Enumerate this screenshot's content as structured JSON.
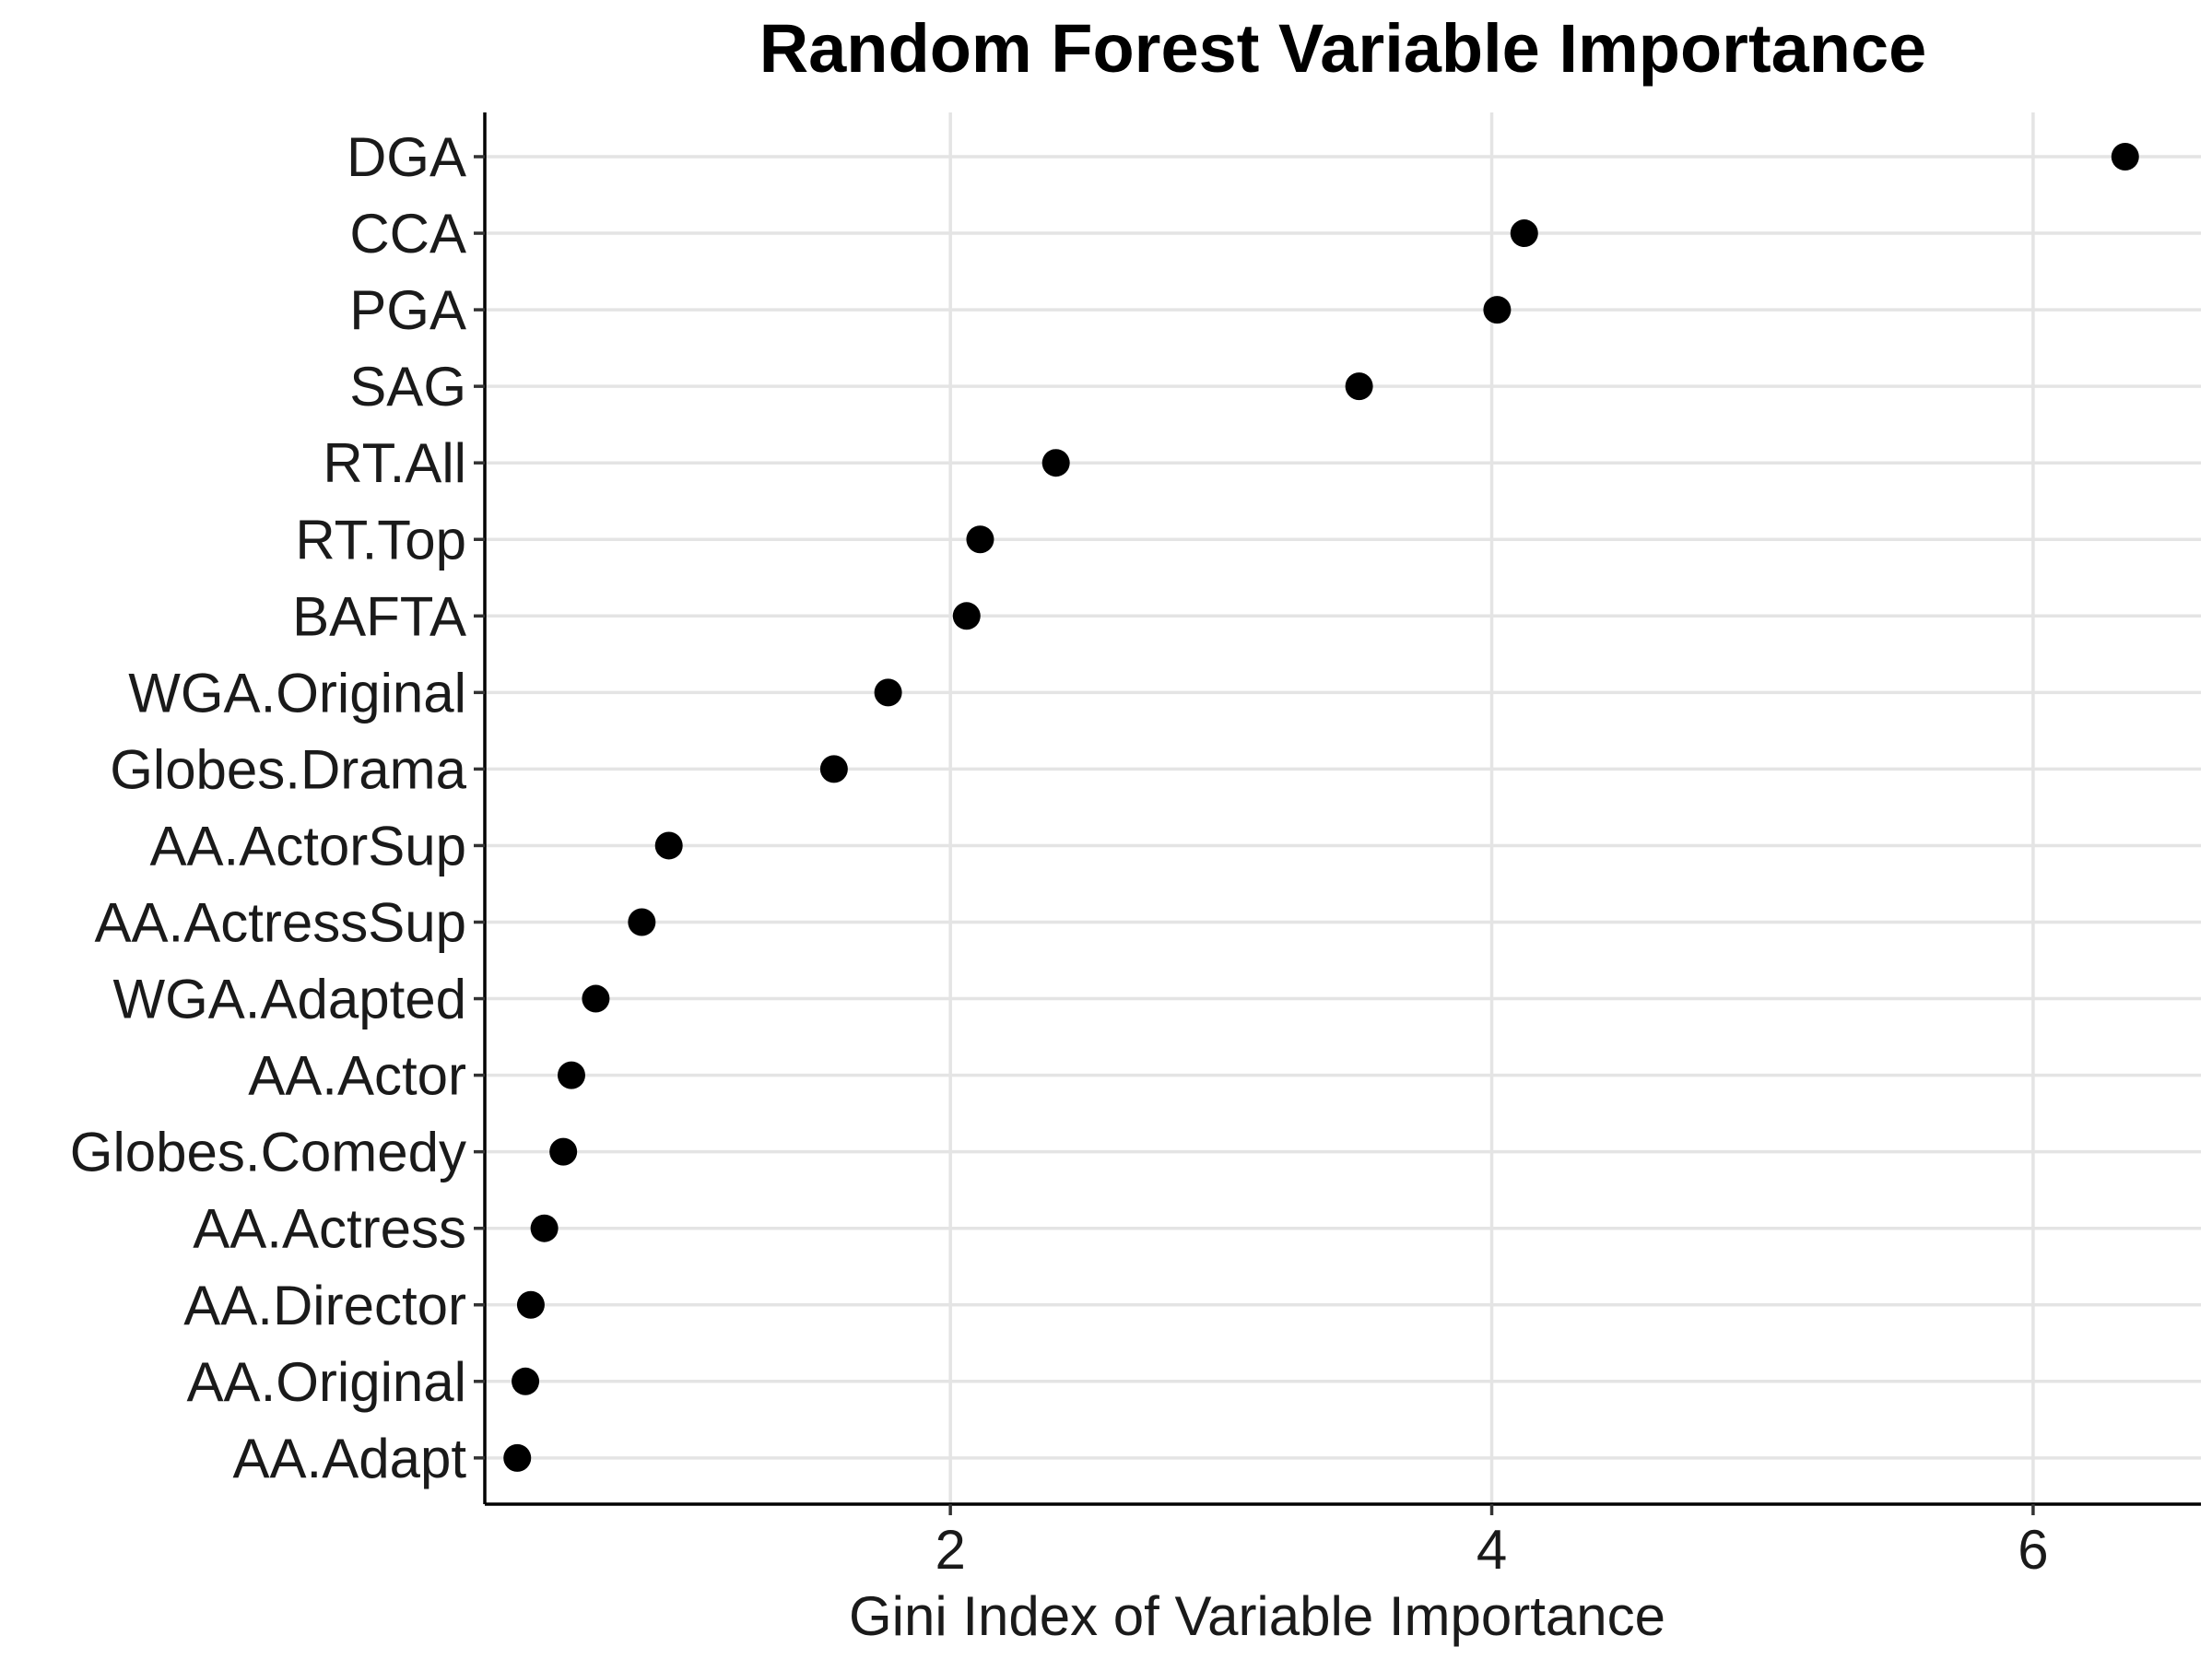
{
  "chart_data": {
    "type": "scatter",
    "title": "Random Forest Variable Importance",
    "xlabel": "Gini Index of Variable Importance",
    "ylabel": "",
    "xlim": [
      0.28,
      6.62
    ],
    "xticks": [
      2,
      4,
      6
    ],
    "grid": true,
    "legend": "none",
    "point_color": "#000000",
    "grid_color": "#e4e4e4",
    "categories": [
      "DGA",
      "CCA",
      "PGA",
      "SAG",
      "RT.All",
      "RT.Top",
      "BAFTA",
      "WGA.Original",
      "Globes.Drama",
      "AA.ActorSup",
      "AA.ActressSup",
      "WGA.Adapted",
      "AA.Actor",
      "Globes.Comedy",
      "AA.Actress",
      "AA.Director",
      "AA.Original",
      "AA.Adapt"
    ],
    "values": [
      6.34,
      4.12,
      4.02,
      3.51,
      2.39,
      2.11,
      2.06,
      1.77,
      1.57,
      0.96,
      0.86,
      0.69,
      0.6,
      0.57,
      0.5,
      0.45,
      0.43,
      0.4
    ]
  }
}
